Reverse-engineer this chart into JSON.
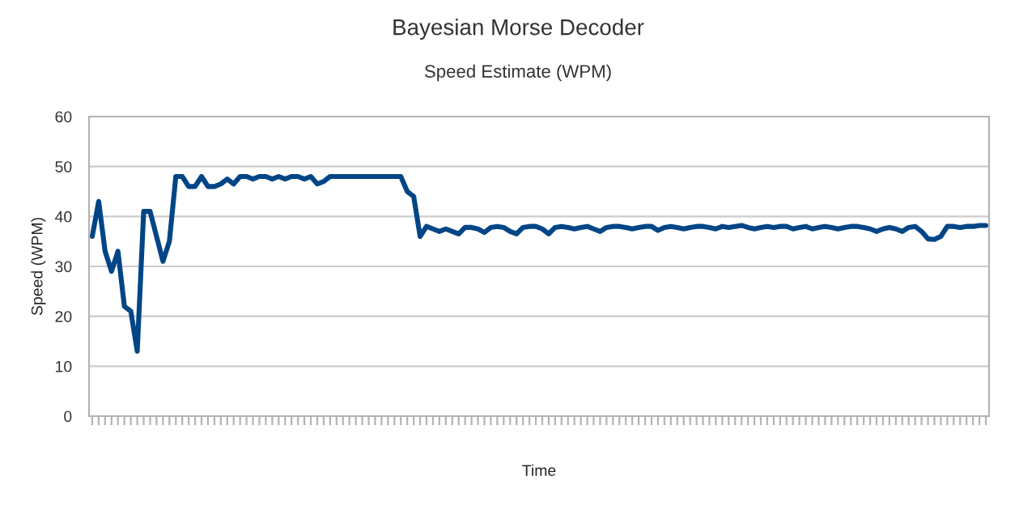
{
  "chart_data": {
    "type": "line",
    "title": "Bayesian Morse Decoder",
    "subtitle": "Speed Estimate (WPM)",
    "xlabel": "Time",
    "ylabel": "Speed (WPM)",
    "categories": [
      null,
      null,
      null,
      null,
      null,
      null,
      null,
      null,
      null,
      null,
      null,
      null,
      null,
      null,
      null,
      null,
      null,
      null,
      null,
      null,
      null,
      null,
      null,
      null,
      null,
      null,
      null,
      null,
      null,
      null,
      null,
      null,
      null,
      null,
      null,
      null,
      null,
      null,
      null,
      null,
      null,
      null,
      null,
      null,
      null,
      null,
      null,
      null,
      null,
      null,
      null,
      null,
      null,
      null,
      null,
      null,
      null,
      null,
      null,
      null,
      null,
      null,
      null,
      null,
      null,
      null,
      null,
      null,
      null,
      null,
      null,
      null,
      null,
      null,
      null,
      null,
      null,
      null,
      null,
      null,
      null,
      null,
      null,
      null,
      null,
      null,
      null,
      null,
      null,
      null,
      null,
      null,
      null,
      null,
      null,
      null,
      null,
      null,
      null,
      null,
      null,
      null,
      null,
      null,
      null,
      null,
      null,
      null,
      null,
      null,
      null,
      null,
      null,
      null,
      null,
      null,
      null,
      null,
      null,
      null,
      null,
      null,
      null,
      null,
      null,
      null,
      null,
      null,
      null,
      null,
      null,
      null,
      null,
      null,
      null,
      null,
      null,
      null,
      null,
      null
    ],
    "series": [
      {
        "color": "#004586",
        "values": [
          36,
          43,
          33,
          29,
          33,
          22,
          21,
          13,
          41,
          41,
          36,
          31,
          35,
          48,
          48,
          46,
          46,
          48,
          46,
          46,
          46.5,
          47.5,
          46.5,
          48,
          48,
          47.5,
          48,
          48,
          47.5,
          48,
          47.5,
          48,
          48,
          47.5,
          48,
          46.5,
          47,
          48,
          48,
          48,
          48,
          48,
          48,
          48,
          48,
          48,
          48,
          48,
          48,
          45,
          44,
          36,
          38,
          37.5,
          37,
          37.5,
          37,
          36.5,
          37.8,
          37.8,
          37.5,
          36.8,
          37.8,
          38,
          37.8,
          37,
          36.5,
          37.8,
          38,
          38,
          37.5,
          36.5,
          37.8,
          38,
          37.8,
          37.5,
          37.8,
          38,
          37.5,
          37,
          37.8,
          38,
          38,
          37.8,
          37.5,
          37.8,
          38,
          38,
          37.2,
          37.8,
          38,
          37.8,
          37.5,
          37.8,
          38,
          38,
          37.8,
          37.5,
          38,
          37.8,
          38,
          38.2,
          37.8,
          37.5,
          37.8,
          38,
          37.8,
          38,
          38,
          37.5,
          37.8,
          38,
          37.5,
          37.8,
          38,
          37.8,
          37.5,
          37.8,
          38,
          38,
          37.8,
          37.5,
          37,
          37.5,
          37.8,
          37.5,
          37,
          37.8,
          38,
          37,
          35.5,
          35.4,
          36,
          38,
          38,
          37.8,
          38,
          38,
          38.2,
          38.2
        ]
      }
    ],
    "ylim": [
      0,
      60
    ],
    "yticks": [
      0,
      10,
      20,
      30,
      40,
      50,
      60
    ],
    "grid": "y",
    "legend": false
  }
}
